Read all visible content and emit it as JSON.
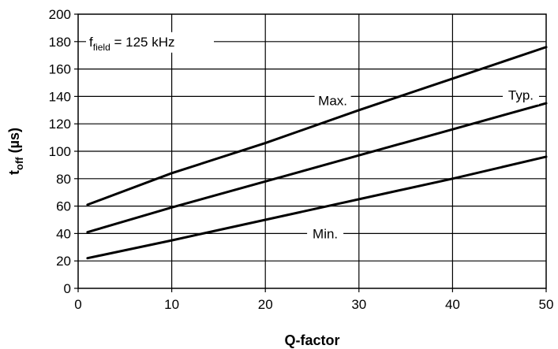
{
  "chart_data": {
    "type": "line",
    "xlabel": "Q-factor",
    "ylabel_main": "t",
    "ylabel_sub": "off",
    "ylabel_unit": " (µs)",
    "xlim": [
      0,
      50
    ],
    "ylim": [
      0,
      200
    ],
    "xticks": [
      0,
      10,
      20,
      30,
      40,
      50
    ],
    "yticks": [
      0,
      20,
      40,
      60,
      80,
      100,
      120,
      140,
      160,
      180,
      200
    ],
    "grid": true,
    "annotation": {
      "main": "f",
      "sub": "field",
      "rest": " = 125 kHz",
      "y": 180
    },
    "series": [
      {
        "name": "Max.",
        "label_at": [
          27.2,
          137
        ],
        "x": [
          1,
          10,
          20,
          30,
          40,
          50
        ],
        "values": [
          61,
          84,
          106,
          130,
          153,
          176
        ],
        "color": "#000000"
      },
      {
        "name": "Typ.",
        "label_at": [
          47.3,
          141
        ],
        "x": [
          1,
          10,
          20,
          30,
          40,
          50
        ],
        "values": [
          41,
          59,
          78,
          97,
          116,
          135
        ],
        "color": "#000000"
      },
      {
        "name": "Min.",
        "label_at": [
          26.4,
          40
        ],
        "x": [
          1,
          10,
          20,
          30,
          40,
          50
        ],
        "values": [
          22,
          35,
          50,
          65,
          80,
          96
        ],
        "color": "#000000"
      }
    ]
  }
}
